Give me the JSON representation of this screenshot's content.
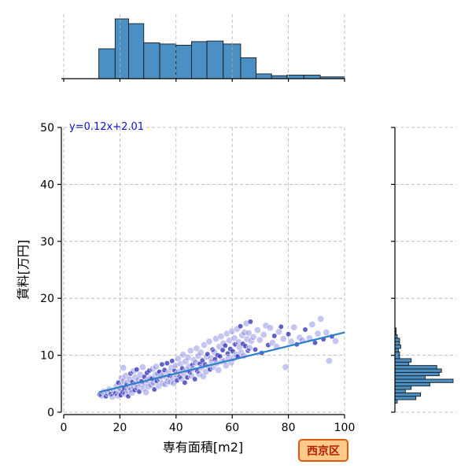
{
  "chart_data": {
    "type": "scatter",
    "xlabel": "専有面積[m2]",
    "ylabel": "賃料[万円]",
    "xlim": [
      0,
      100
    ],
    "ylim": [
      0,
      50
    ],
    "x_ticks": [
      "0",
      "20",
      "40",
      "60",
      "80",
      "100"
    ],
    "y_ticks": [
      "0",
      "10",
      "20",
      "30",
      "40",
      "50"
    ],
    "grid": true,
    "regression": {
      "label": "y=0.12x+2.01",
      "slope": 0.12,
      "intercept": 2.01,
      "x_range": [
        12.5,
        100
      ]
    },
    "badge": "西京区",
    "colors": {
      "points": "#5a5ad6",
      "points_dark": "#1e1eb4",
      "line": "#2a7fc8",
      "hist": "#4a90c4",
      "badge_fill": "#ffc98a",
      "badge_border": "#e05a10"
    },
    "x_histogram": {
      "bin_edges": [
        12.5,
        18.3,
        23.1,
        28.5,
        34.2,
        40.0,
        45.5,
        51.0,
        56.8,
        63.0,
        68.5,
        74.0,
        79.5,
        85.5,
        91.3,
        100
      ],
      "counts": [
        50,
        100,
        92,
        60,
        58,
        56,
        62,
        63,
        58,
        35,
        8,
        5,
        6,
        6,
        3
      ]
    },
    "y_histogram": {
      "bin_edges": [
        1.6,
        2.2,
        2.8,
        3.4,
        4.0,
        4.6,
        5.2,
        5.8,
        6.4,
        7.0,
        7.6,
        8.2,
        8.8,
        9.4,
        10.0,
        10.6,
        11.2,
        11.8,
        12.4,
        13.0,
        13.6,
        14.2,
        14.8
      ],
      "counts": [
        2,
        18,
        22,
        9,
        14,
        30,
        50,
        26,
        38,
        40,
        36,
        12,
        14,
        4,
        4,
        3,
        5,
        4,
        4,
        2,
        1,
        1
      ]
    },
    "points": [
      [
        12.8,
        3.1
      ],
      [
        13.5,
        2.9
      ],
      [
        14.2,
        3.6
      ],
      [
        15.0,
        2.8
      ],
      [
        15.6,
        3.4
      ],
      [
        16.2,
        4.0
      ],
      [
        16.8,
        3.2
      ],
      [
        17.3,
        2.7
      ],
      [
        17.9,
        3.8
      ],
      [
        18.4,
        3.3
      ],
      [
        18.8,
        4.6
      ],
      [
        19.2,
        2.9
      ],
      [
        19.5,
        5.2
      ],
      [
        19.8,
        3.6
      ],
      [
        20.1,
        4.2
      ],
      [
        20.3,
        3.0
      ],
      [
        20.6,
        6.0
      ],
      [
        20.8,
        4.8
      ],
      [
        21.0,
        3.5
      ],
      [
        21.2,
        7.8
      ],
      [
        21.4,
        5.5
      ],
      [
        21.6,
        4.1
      ],
      [
        21.9,
        3.2
      ],
      [
        22.1,
        6.4
      ],
      [
        22.3,
        4.7
      ],
      [
        22.6,
        5.1
      ],
      [
        22.8,
        3.8
      ],
      [
        23.0,
        2.8
      ],
      [
        23.3,
        4.4
      ],
      [
        23.5,
        5.8
      ],
      [
        23.8,
        6.8
      ],
      [
        24.0,
        4.0
      ],
      [
        24.3,
        3.4
      ],
      [
        24.5,
        5.3
      ],
      [
        24.8,
        7.2
      ],
      [
        25.0,
        4.6
      ],
      [
        25.3,
        3.9
      ],
      [
        25.5,
        6.1
      ],
      [
        25.8,
        5.0
      ],
      [
        26.0,
        7.5
      ],
      [
        26.3,
        4.3
      ],
      [
        26.6,
        5.7
      ],
      [
        26.9,
        3.6
      ],
      [
        27.2,
        6.6
      ],
      [
        27.5,
        4.9
      ],
      [
        27.8,
        5.4
      ],
      [
        28.1,
        7.9
      ],
      [
        28.4,
        4.2
      ],
      [
        28.7,
        6.2
      ],
      [
        29.0,
        5.1
      ],
      [
        29.3,
        3.5
      ],
      [
        29.6,
        6.9
      ],
      [
        29.9,
        5.6
      ],
      [
        30.2,
        4.5
      ],
      [
        30.5,
        7.3
      ],
      [
        30.8,
        6.0
      ],
      [
        31.1,
        4.8
      ],
      [
        31.4,
        5.9
      ],
      [
        31.7,
        7.6
      ],
      [
        32.0,
        5.2
      ],
      [
        32.3,
        4.0
      ],
      [
        32.6,
        6.5
      ],
      [
        32.9,
        8.0
      ],
      [
        33.2,
        5.5
      ],
      [
        33.5,
        6.8
      ],
      [
        33.8,
        4.6
      ],
      [
        34.1,
        7.1
      ],
      [
        34.4,
        5.8
      ],
      [
        34.7,
        6.3
      ],
      [
        35.0,
        8.4
      ],
      [
        35.3,
        5.0
      ],
      [
        35.6,
        6.7
      ],
      [
        35.9,
        7.4
      ],
      [
        36.2,
        4.9
      ],
      [
        36.5,
        6.1
      ],
      [
        36.8,
        8.6
      ],
      [
        37.1,
        5.4
      ],
      [
        37.4,
        7.0
      ],
      [
        37.7,
        6.4
      ],
      [
        38.0,
        5.3
      ],
      [
        38.3,
        7.8
      ],
      [
        38.6,
        9.0
      ],
      [
        38.9,
        6.0
      ],
      [
        39.2,
        5.1
      ],
      [
        39.5,
        7.3
      ],
      [
        39.8,
        8.2
      ],
      [
        40.1,
        6.6
      ],
      [
        40.4,
        5.6
      ],
      [
        40.7,
        9.4
      ],
      [
        41.0,
        7.1
      ],
      [
        41.3,
        6.2
      ],
      [
        41.6,
        8.5
      ],
      [
        41.9,
        5.9
      ],
      [
        42.2,
        7.7
      ],
      [
        42.5,
        10.1
      ],
      [
        42.8,
        6.8
      ],
      [
        43.1,
        5.2
      ],
      [
        43.4,
        8.9
      ],
      [
        43.7,
        7.4
      ],
      [
        44.0,
        6.1
      ],
      [
        44.3,
        9.6
      ],
      [
        44.6,
        8.0
      ],
      [
        44.9,
        7.0
      ],
      [
        45.2,
        10.8
      ],
      [
        45.5,
        6.4
      ],
      [
        45.8,
        8.3
      ],
      [
        46.1,
        7.6
      ],
      [
        46.4,
        9.2
      ],
      [
        46.7,
        5.8
      ],
      [
        47.0,
        8.7
      ],
      [
        47.3,
        11.2
      ],
      [
        47.6,
        7.2
      ],
      [
        47.9,
        9.9
      ],
      [
        48.2,
        6.7
      ],
      [
        48.5,
        8.5
      ],
      [
        48.8,
        10.5
      ],
      [
        49.1,
        7.8
      ],
      [
        49.4,
        9.1
      ],
      [
        49.7,
        6.3
      ],
      [
        50.0,
        11.8
      ],
      [
        50.3,
        8.4
      ],
      [
        50.6,
        7.1
      ],
      [
        50.9,
        9.7
      ],
      [
        51.2,
        10.2
      ],
      [
        51.5,
        8.0
      ],
      [
        51.8,
        12.4
      ],
      [
        52.1,
        7.5
      ],
      [
        52.4,
        9.5
      ],
      [
        52.7,
        8.8
      ],
      [
        53.0,
        11.0
      ],
      [
        53.3,
        7.9
      ],
      [
        53.6,
        10.6
      ],
      [
        53.9,
        9.3
      ],
      [
        54.2,
        12.9
      ],
      [
        54.5,
        8.6
      ],
      [
        54.8,
        10.0
      ],
      [
        55.1,
        7.4
      ],
      [
        55.4,
        11.5
      ],
      [
        55.7,
        9.8
      ],
      [
        56.0,
        13.3
      ],
      [
        56.3,
        8.9
      ],
      [
        56.6,
        10.9
      ],
      [
        56.9,
        12.1
      ],
      [
        57.2,
        9.0
      ],
      [
        57.5,
        11.7
      ],
      [
        57.8,
        8.2
      ],
      [
        58.1,
        13.8
      ],
      [
        58.4,
        10.3
      ],
      [
        58.7,
        9.6
      ],
      [
        59.0,
        12.6
      ],
      [
        59.3,
        11.1
      ],
      [
        59.6,
        8.7
      ],
      [
        59.9,
        14.2
      ],
      [
        60.2,
        10.7
      ],
      [
        60.5,
        9.4
      ],
      [
        60.8,
        13.0
      ],
      [
        61.1,
        11.9
      ],
      [
        61.4,
        10.1
      ],
      [
        61.7,
        14.6
      ],
      [
        62.0,
        9.8
      ],
      [
        62.3,
        12.3
      ],
      [
        62.6,
        11.4
      ],
      [
        62.9,
        15.1
      ],
      [
        63.2,
        10.5
      ],
      [
        63.5,
        13.5
      ],
      [
        63.8,
        12.0
      ],
      [
        64.1,
        9.9
      ],
      [
        64.4,
        14.0
      ],
      [
        64.7,
        11.6
      ],
      [
        65.0,
        15.6
      ],
      [
        65.3,
        12.8
      ],
      [
        65.6,
        10.8
      ],
      [
        65.9,
        13.9
      ],
      [
        66.2,
        11.3
      ],
      [
        66.5,
        15.9
      ],
      [
        66.8,
        12.5
      ],
      [
        67.5,
        13.2
      ],
      [
        68.2,
        11.0
      ],
      [
        69.0,
        14.4
      ],
      [
        69.8,
        12.7
      ],
      [
        70.5,
        10.4
      ],
      [
        71.2,
        13.6
      ],
      [
        72.0,
        15.2
      ],
      [
        72.8,
        11.8
      ],
      [
        73.5,
        14.8
      ],
      [
        74.3,
        12.2
      ],
      [
        75.0,
        13.4
      ],
      [
        75.8,
        11.5
      ],
      [
        76.6,
        14.1
      ],
      [
        77.4,
        15.0
      ],
      [
        78.2,
        12.9
      ],
      [
        79.0,
        7.9
      ],
      [
        80.0,
        13.7
      ],
      [
        81.0,
        12.4
      ],
      [
        82.0,
        14.9
      ],
      [
        83.0,
        11.9
      ],
      [
        84.0,
        13.1
      ],
      [
        85.0,
        12.6
      ],
      [
        86.0,
        14.5
      ],
      [
        87.5,
        13.0
      ],
      [
        88.5,
        15.4
      ],
      [
        89.5,
        12.2
      ],
      [
        90.5,
        13.8
      ],
      [
        91.5,
        16.4
      ],
      [
        92.5,
        12.8
      ],
      [
        93.5,
        14.0
      ],
      [
        94.5,
        9.0
      ],
      [
        95.5,
        13.3
      ],
      [
        96.8,
        12.5
      ]
    ]
  }
}
